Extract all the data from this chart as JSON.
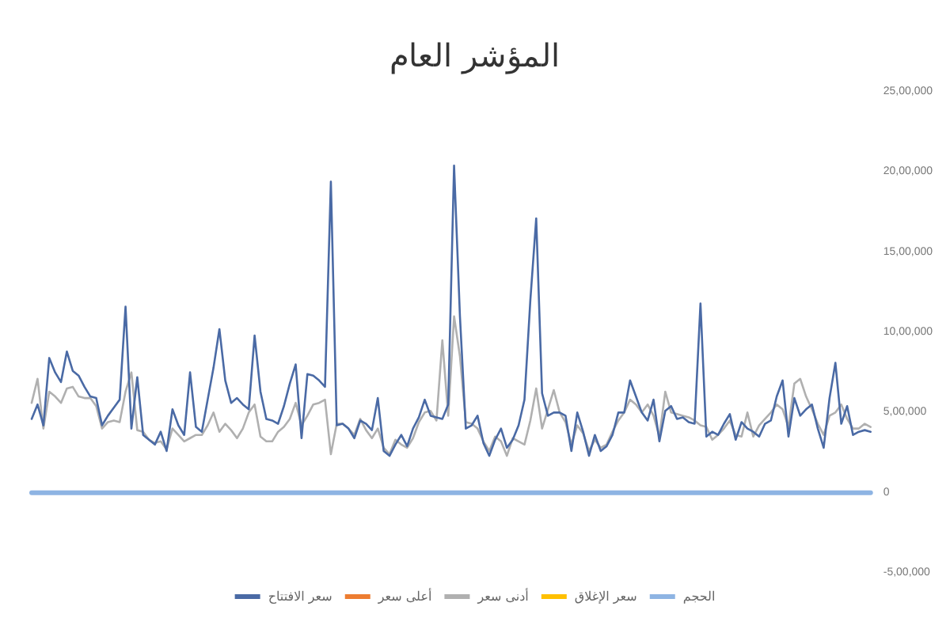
{
  "chart_data": {
    "type": "line",
    "title": "المؤشر العام",
    "categories": [
      null,
      null,
      null,
      null,
      null,
      null,
      null,
      null,
      null,
      null,
      null,
      null,
      null,
      null,
      null,
      null,
      null,
      null,
      null,
      null,
      null,
      null,
      null,
      null,
      null,
      null,
      null,
      null,
      null,
      null,
      null,
      null,
      null,
      null,
      null,
      null,
      null,
      null,
      null,
      null,
      null,
      null,
      null,
      null,
      null,
      null,
      null,
      null,
      null,
      null,
      null,
      null,
      null,
      null,
      null,
      null,
      null,
      null,
      null,
      null,
      null,
      null,
      null,
      null,
      null,
      null,
      null,
      null,
      null,
      null,
      null,
      null,
      null,
      null,
      null,
      null,
      null,
      null,
      null,
      null,
      null,
      null,
      null,
      null,
      null,
      null,
      null,
      null,
      null,
      null,
      null,
      null,
      null,
      null,
      null,
      null,
      null,
      null,
      null,
      null,
      null,
      null,
      null,
      null,
      null,
      null,
      null,
      null,
      null,
      null,
      null,
      null,
      null,
      null,
      null,
      null,
      null,
      null,
      null,
      null,
      null,
      null,
      null,
      null,
      null,
      null,
      null,
      null,
      null,
      null,
      null,
      null,
      null,
      null,
      null,
      null,
      null,
      null,
      null,
      null,
      null,
      null,
      null,
      null
    ],
    "series": [
      {
        "name": "سعر الافتتاح",
        "color": "#4a6aa5",
        "values": [
          460000,
          550000,
          420000,
          840000,
          750000,
          690000,
          880000,
          760000,
          730000,
          660000,
          600000,
          590000,
          420000,
          480000,
          530000,
          580000,
          1160000,
          400000,
          720000,
          360000,
          330000,
          300000,
          380000,
          260000,
          520000,
          420000,
          360000,
          750000,
          410000,
          380000,
          580000,
          780000,
          1020000,
          700000,
          560000,
          590000,
          550000,
          520000,
          980000,
          630000,
          460000,
          450000,
          430000,
          540000,
          680000,
          800000,
          340000,
          740000,
          730000,
          700000,
          660000,
          1940000,
          420000,
          430000,
          400000,
          340000,
          450000,
          430000,
          390000,
          590000,
          260000,
          230000,
          300000,
          360000,
          290000,
          400000,
          470000,
          580000,
          480000,
          470000,
          460000,
          550000,
          2040000,
          1100000,
          400000,
          420000,
          480000,
          310000,
          230000,
          330000,
          400000,
          280000,
          330000,
          420000,
          580000,
          1200000,
          1710000,
          620000,
          480000,
          500000,
          500000,
          480000,
          260000,
          500000,
          380000,
          230000,
          360000,
          260000,
          290000,
          360000,
          500000,
          500000,
          700000,
          600000,
          500000,
          450000,
          580000,
          320000,
          510000,
          540000,
          460000,
          470000,
          440000,
          430000,
          1180000,
          350000,
          380000,
          360000,
          430000,
          490000,
          330000,
          440000,
          400000,
          380000,
          350000,
          430000,
          450000,
          600000,
          700000,
          350000,
          590000,
          480000,
          520000,
          550000,
          400000,
          280000,
          590000,
          810000,
          430000,
          540000,
          360000,
          380000,
          390000,
          380000
        ]
      },
      {
        "name": "أعلى سعر",
        "color": "#ed7d31",
        "values": [
          null,
          null,
          null,
          null,
          null,
          null,
          null,
          null,
          null,
          null,
          null,
          null,
          null,
          null,
          null,
          null,
          null,
          null,
          null,
          null,
          null,
          null,
          null,
          null,
          null,
          null,
          null,
          null,
          null,
          null,
          null,
          null,
          null,
          null,
          null,
          null,
          null,
          null,
          null,
          null,
          null,
          null,
          null,
          null,
          null,
          null,
          null,
          null,
          null,
          null,
          null,
          null,
          null,
          null,
          null,
          null,
          null,
          null,
          null,
          null,
          null,
          null,
          null,
          null,
          null,
          null,
          null,
          null,
          null,
          null,
          null,
          null,
          null,
          null,
          null,
          null,
          null,
          null,
          null,
          null,
          null,
          null,
          null,
          null,
          null,
          null,
          null,
          null,
          null,
          null,
          null,
          null,
          null,
          null,
          null,
          null,
          null,
          null,
          null,
          null,
          null,
          null,
          null,
          null,
          null,
          null,
          null,
          null,
          null,
          null,
          null,
          null,
          null,
          null,
          null,
          null,
          null,
          null,
          null,
          null,
          null,
          null,
          null,
          null,
          null,
          null,
          null,
          null,
          null,
          null,
          null,
          null,
          null,
          null,
          null,
          null,
          null,
          null,
          null,
          null,
          null,
          null,
          null,
          null
        ]
      },
      {
        "name": "أدنى سعر",
        "color": "#b0b0b0",
        "values": [
          560000,
          710000,
          400000,
          630000,
          600000,
          560000,
          650000,
          660000,
          600000,
          590000,
          590000,
          540000,
          400000,
          440000,
          450000,
          440000,
          630000,
          750000,
          390000,
          380000,
          330000,
          310000,
          320000,
          270000,
          400000,
          360000,
          320000,
          340000,
          360000,
          360000,
          420000,
          500000,
          380000,
          430000,
          390000,
          340000,
          400000,
          500000,
          550000,
          350000,
          320000,
          320000,
          380000,
          410000,
          460000,
          560000,
          420000,
          480000,
          550000,
          560000,
          580000,
          240000,
          430000,
          430000,
          400000,
          360000,
          460000,
          390000,
          340000,
          400000,
          280000,
          240000,
          330000,
          300000,
          280000,
          340000,
          440000,
          500000,
          510000,
          450000,
          950000,
          480000,
          1100000,
          850000,
          440000,
          430000,
          400000,
          320000,
          260000,
          350000,
          320000,
          230000,
          340000,
          320000,
          300000,
          450000,
          650000,
          400000,
          520000,
          640000,
          500000,
          440000,
          300000,
          420000,
          370000,
          260000,
          330000,
          280000,
          300000,
          380000,
          450000,
          500000,
          580000,
          550000,
          500000,
          550000,
          480000,
          350000,
          630000,
          500000,
          490000,
          480000,
          470000,
          450000,
          420000,
          410000,
          330000,
          360000,
          400000,
          450000,
          360000,
          350000,
          500000,
          350000,
          420000,
          460000,
          500000,
          550000,
          520000,
          410000,
          680000,
          710000,
          600000,
          520000,
          430000,
          360000,
          480000,
          500000,
          550000,
          460000,
          400000,
          400000,
          430000,
          410000
        ]
      },
      {
        "name": "سعر الإغلاق",
        "color": "#ffc000",
        "values": [
          null,
          null,
          null,
          null,
          null,
          null,
          null,
          null,
          null,
          null,
          null,
          null,
          null,
          null,
          null,
          null,
          null,
          null,
          null,
          null,
          null,
          null,
          null,
          null,
          null,
          null,
          null,
          null,
          null,
          null,
          null,
          null,
          null,
          null,
          null,
          null,
          null,
          null,
          null,
          null,
          null,
          null,
          null,
          null,
          null,
          null,
          null,
          null,
          null,
          null,
          null,
          null,
          null,
          null,
          null,
          null,
          null,
          null,
          null,
          null,
          null,
          null,
          null,
          null,
          null,
          null,
          null,
          null,
          null,
          null,
          null,
          null,
          null,
          null,
          null,
          null,
          null,
          null,
          null,
          null,
          null,
          null,
          null,
          null,
          null,
          null,
          null,
          null,
          null,
          null,
          null,
          null,
          null,
          null,
          null,
          null,
          null,
          null,
          null,
          null,
          null,
          null,
          null,
          null,
          null,
          null,
          null,
          null,
          null,
          null,
          null,
          null,
          null,
          null,
          null,
          null,
          null,
          null,
          null,
          null,
          null,
          null,
          null,
          null,
          null,
          null,
          null,
          null,
          null,
          null,
          null,
          null,
          null,
          null,
          null,
          null,
          null,
          null,
          null,
          null,
          null,
          null,
          null,
          null
        ]
      },
      {
        "name": "الحجم",
        "color": "#8eb4e3",
        "values": [
          0,
          0,
          0,
          0,
          0,
          0,
          0,
          0,
          0,
          0,
          0,
          0,
          0,
          0,
          0,
          0,
          0,
          0,
          0,
          0,
          0,
          0,
          0,
          0,
          0,
          0,
          0,
          0,
          0,
          0,
          0,
          0,
          0,
          0,
          0,
          0,
          0,
          0,
          0,
          0,
          0,
          0,
          0,
          0,
          0,
          0,
          0,
          0,
          0,
          0,
          0,
          0,
          0,
          0,
          0,
          0,
          0,
          0,
          0,
          0,
          0,
          0,
          0,
          0,
          0,
          0,
          0,
          0,
          0,
          0,
          0,
          0,
          0,
          0,
          0,
          0,
          0,
          0,
          0,
          0,
          0,
          0,
          0,
          0,
          0,
          0,
          0,
          0,
          0,
          0,
          0,
          0,
          0,
          0,
          0,
          0,
          0,
          0,
          0,
          0,
          0,
          0,
          0,
          0,
          0,
          0,
          0,
          0,
          0,
          0,
          0,
          0,
          0,
          0,
          0,
          0,
          0,
          0,
          0,
          0,
          0,
          0,
          0,
          0,
          0,
          0,
          0,
          0,
          0,
          0,
          0,
          0,
          0,
          0,
          0,
          0,
          0,
          0,
          0,
          0,
          0,
          0,
          0,
          0
        ]
      }
    ],
    "ylim": [
      -500000,
      2500000
    ],
    "yticks": [
      {
        "value": -500000,
        "label": "-5,00,000"
      },
      {
        "value": 0,
        "label": "0"
      },
      {
        "value": 500000,
        "label": "5,00,000"
      },
      {
        "value": 1000000,
        "label": "10,00,000"
      },
      {
        "value": 1500000,
        "label": "15,00,000"
      },
      {
        "value": 2000000,
        "label": "20,00,000"
      },
      {
        "value": 2500000,
        "label": "25,00,000"
      }
    ],
    "grid": false,
    "legend": "bottom",
    "marker": "none",
    "line_style": "solid"
  }
}
